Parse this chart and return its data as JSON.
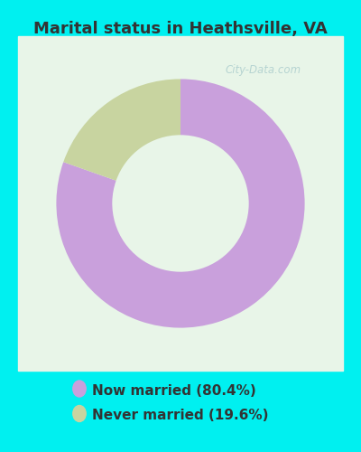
{
  "title": "Marital status in Heathsville, VA",
  "slices": [
    80.4,
    19.6
  ],
  "colors": [
    "#c9a0dc",
    "#c8d4a0"
  ],
  "legend_labels": [
    "Now married (80.4%)",
    "Never married (19.6%)"
  ],
  "legend_colors": [
    "#c9a0dc",
    "#c8d4a0"
  ],
  "outer_bg_color": "#00f0f0",
  "chart_bg_top": "#e8f5e8",
  "chart_bg_bottom": "#d8f0e8",
  "title_fontsize": 13,
  "donut_width": 0.45,
  "start_angle": 90,
  "title_color": "#333333",
  "legend_fontsize": 11,
  "watermark_color": "#aacccc",
  "watermark_alpha": 0.8
}
